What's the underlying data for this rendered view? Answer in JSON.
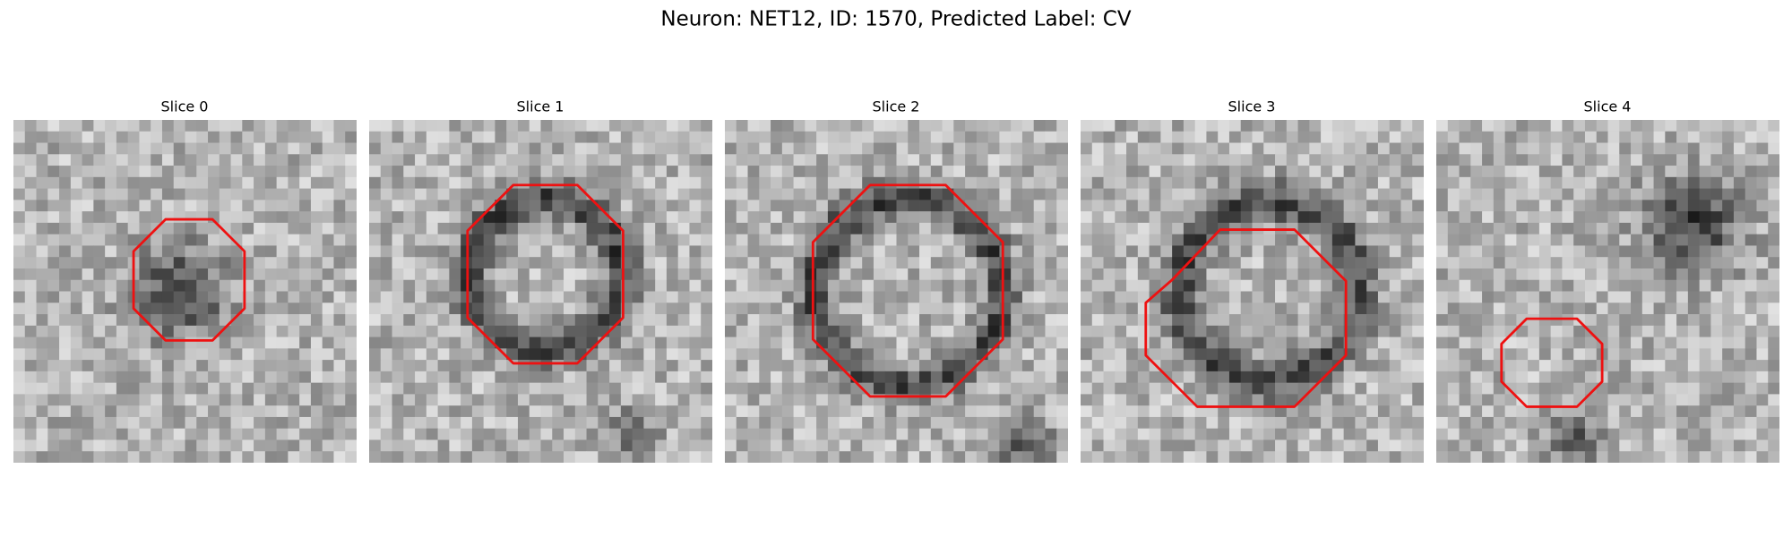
{
  "figure": {
    "title": "Neuron: NET12, ID: 1570, Predicted Label: CV",
    "panels": [
      {
        "title": "Slice 0"
      },
      {
        "title": "Slice 1"
      },
      {
        "title": "Slice 2"
      },
      {
        "title": "Slice 3"
      },
      {
        "title": "Slice 4"
      }
    ]
  }
}
